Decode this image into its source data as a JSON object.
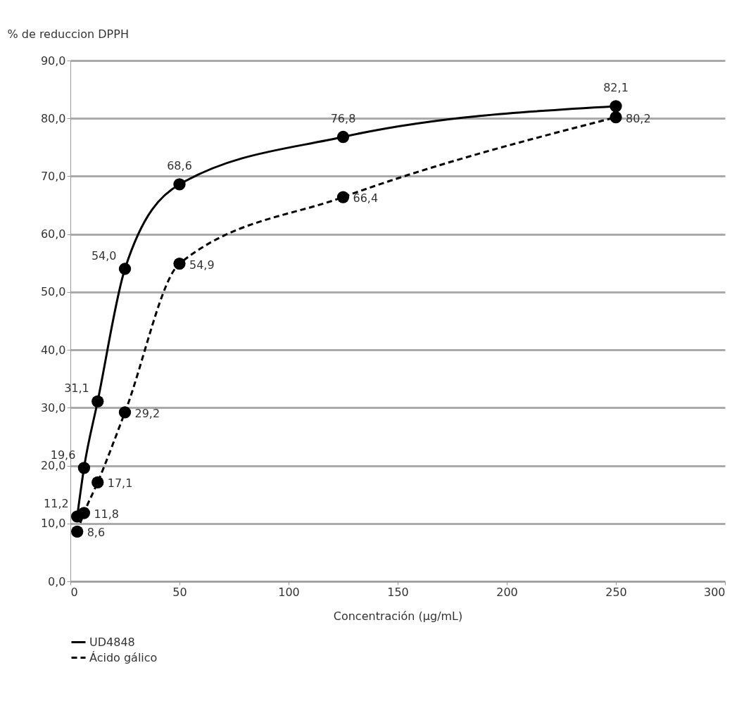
{
  "chart_data": {
    "type": "line",
    "xlabel": "Concentración (µg/mL)",
    "ylabel": "% de reduccion DPPH",
    "xlim": [
      0,
      300
    ],
    "xticks": [
      0,
      50,
      100,
      150,
      200,
      250,
      300
    ],
    "ylim": [
      0,
      90
    ],
    "yticks": [
      {
        "value": 0,
        "label": "0,0"
      },
      {
        "value": 10,
        "label": "10,0"
      },
      {
        "value": 20,
        "label": "20,0"
      },
      {
        "value": 30,
        "label": "30,0"
      },
      {
        "value": 40,
        "label": "40,0"
      },
      {
        "value": 50,
        "label": "50,0"
      },
      {
        "value": 60,
        "label": "60,0"
      },
      {
        "value": 70,
        "label": "70,0"
      },
      {
        "value": 80,
        "label": "80,0"
      },
      {
        "value": 90,
        "label": "90,0"
      }
    ],
    "x": [
      3.125,
      6.25,
      12.5,
      25,
      50,
      125,
      250
    ],
    "series": [
      {
        "name": "UD4848",
        "color": "#000000",
        "line_style": "solid",
        "values": [
          11.2,
          19.6,
          31.1,
          54.0,
          68.6,
          76.8,
          82.1
        ],
        "value_labels": [
          "11,2",
          "19,6",
          "31,1",
          "54,0",
          "68,6",
          "76,8",
          "82,1"
        ]
      },
      {
        "name": "Ácido gálico",
        "color": "#000000",
        "line_style": "dashed",
        "values": [
          8.6,
          11.8,
          17.1,
          29.2,
          54.9,
          66.4,
          80.2
        ],
        "value_labels": [
          "8,6",
          "11,8",
          "17,1",
          "29,2",
          "54,9",
          "66,4",
          "80,2"
        ]
      }
    ],
    "grid": "y",
    "marker": "circle",
    "legend": "bottom left"
  }
}
